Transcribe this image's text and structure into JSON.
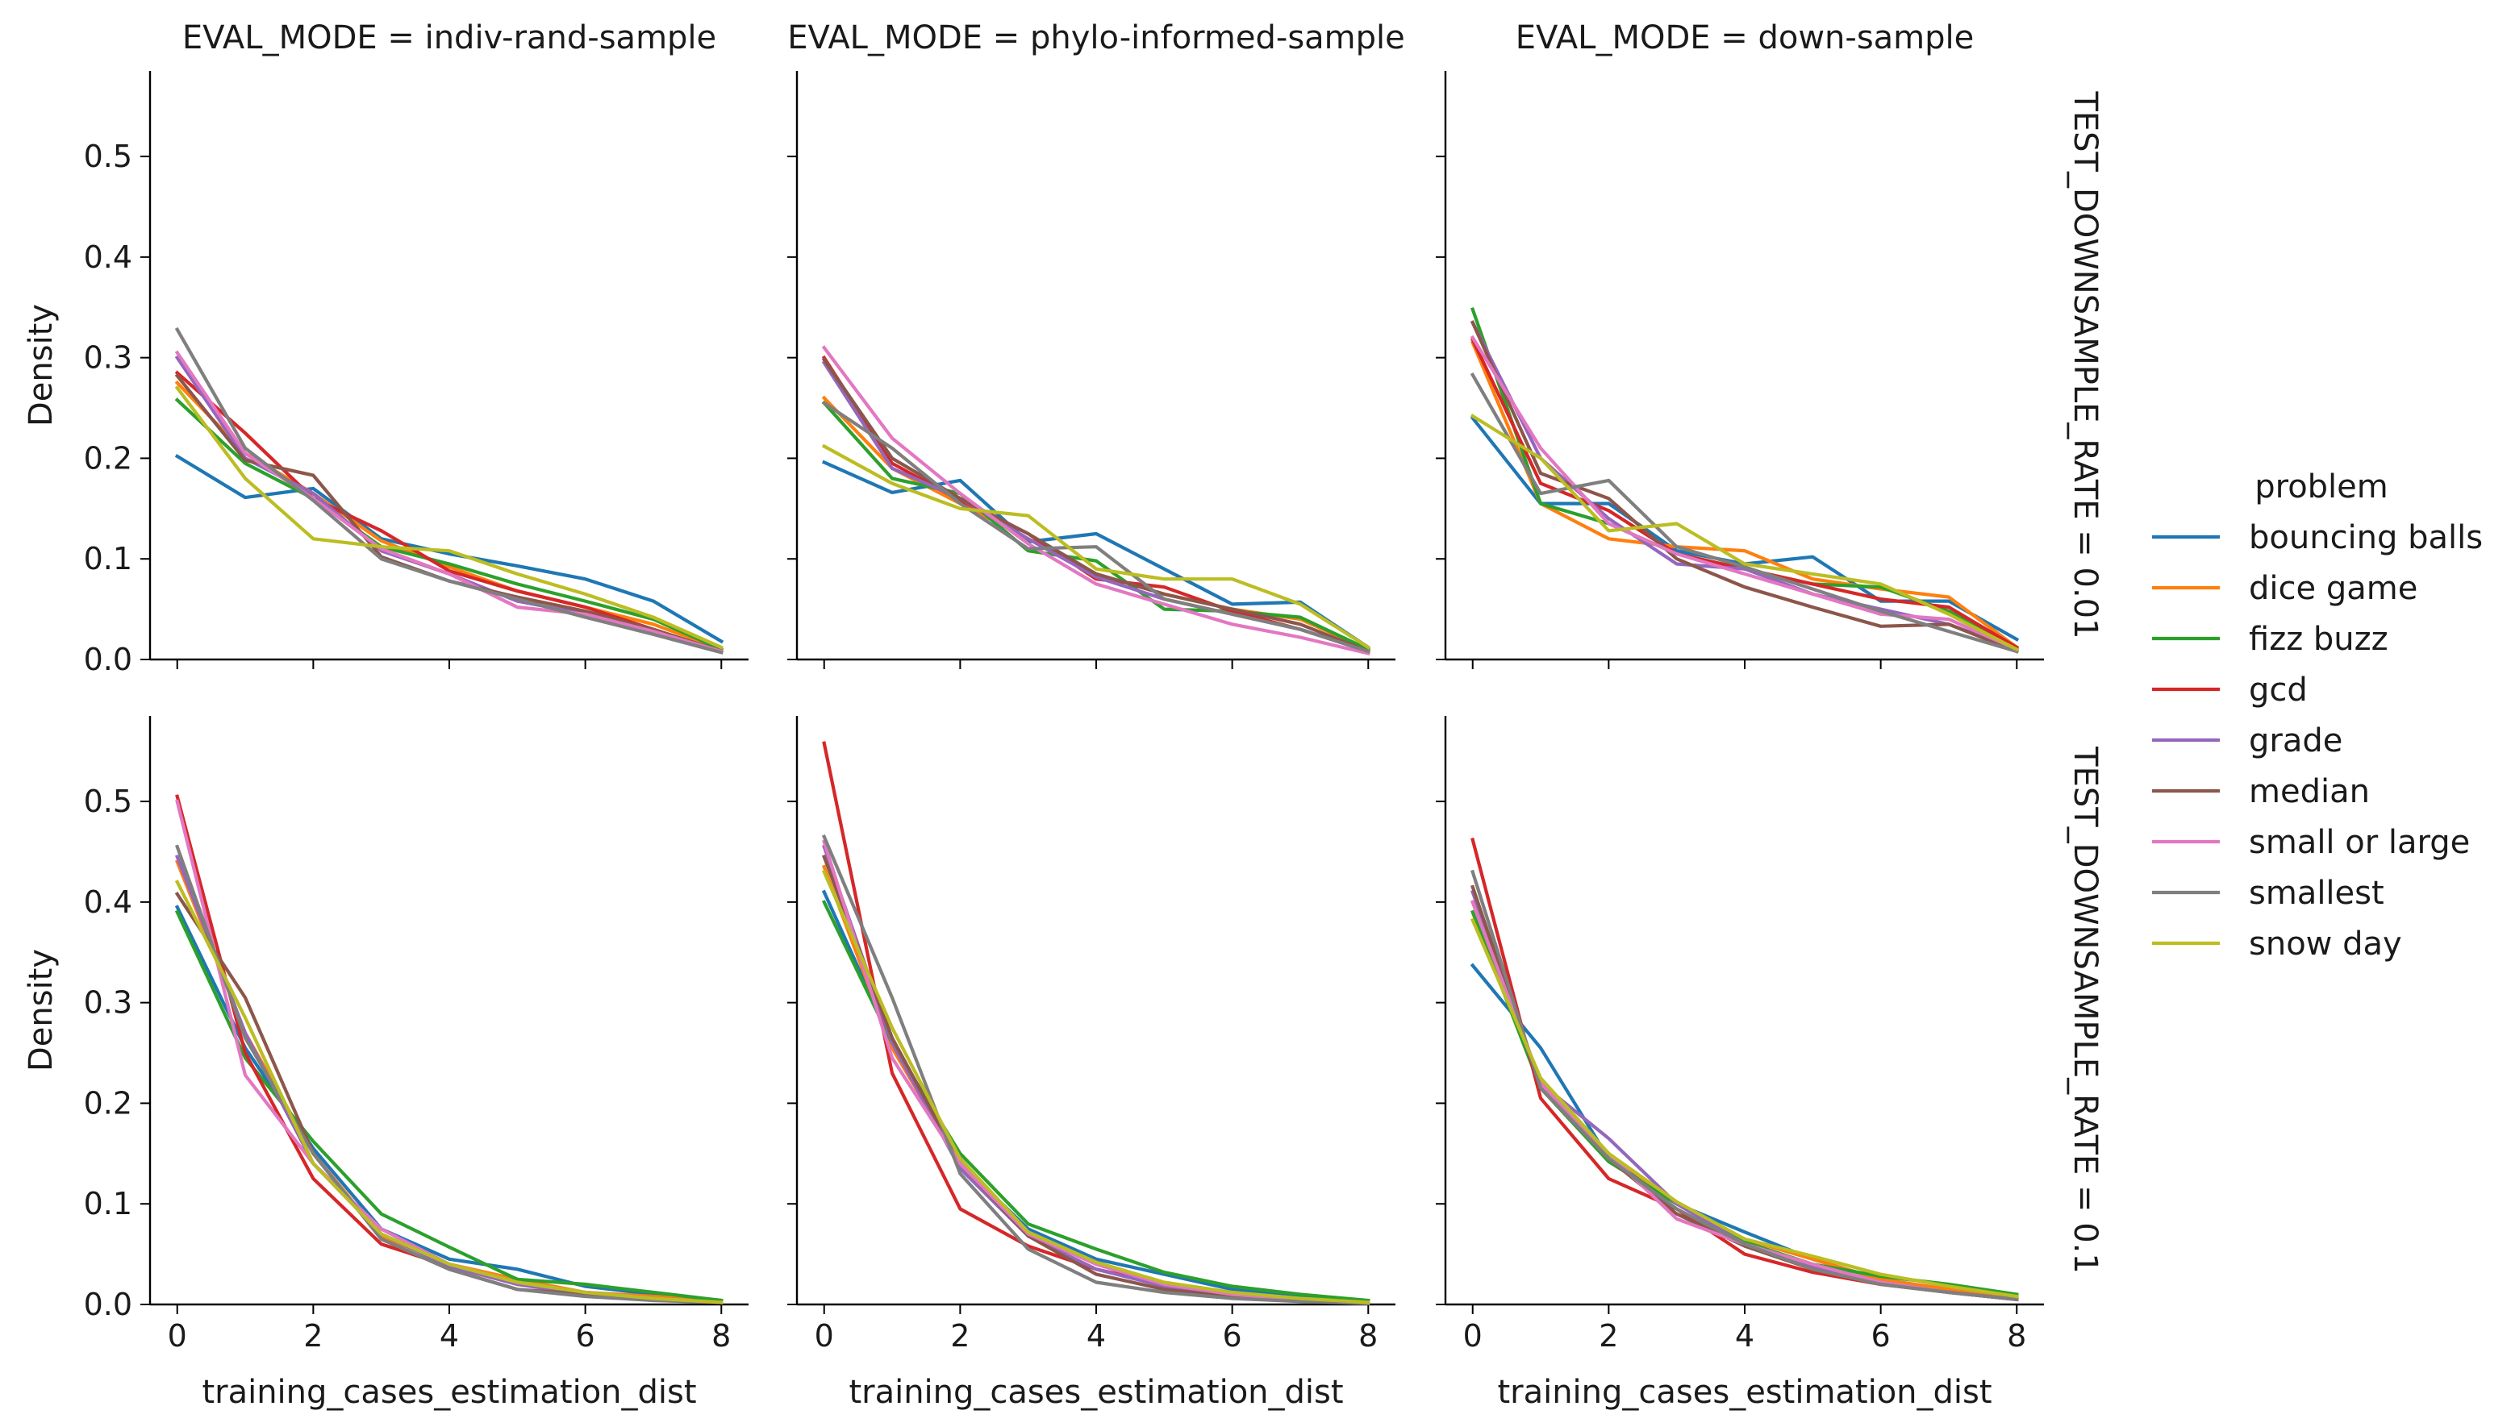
{
  "chart_data": {
    "type": "line",
    "kind": "faceted-grid",
    "col_var": "EVAL_MODE",
    "row_var": "TEST_DOWNSAMPLE_RATE",
    "columns": [
      "EVAL_MODE = indiv-rand-sample",
      "EVAL_MODE = phylo-informed-sample",
      "EVAL_MODE = down-sample"
    ],
    "rows": [
      "TEST_DOWNSAMPLE_RATE = 0.01",
      "TEST_DOWNSAMPLE_RATE = 0.1"
    ],
    "xlabel": "training_cases_estimation_dist",
    "ylabel": "Density",
    "xlim": [
      -0.4,
      8.4
    ],
    "ylim": [
      0,
      0.585
    ],
    "xticks": [
      0,
      2,
      4,
      6,
      8
    ],
    "yticks": [
      0.0,
      0.1,
      0.2,
      0.3,
      0.4,
      0.5
    ],
    "x": [
      0,
      1,
      2,
      3,
      4,
      5,
      6,
      7,
      8
    ],
    "grid": false,
    "legend": {
      "title": "problem",
      "placement": "right",
      "entries": [
        "bouncing balls",
        "dice game",
        "fizz buzz",
        "gcd",
        "grade",
        "median",
        "small or large",
        "smallest",
        "snow day"
      ]
    },
    "colors": {
      "bouncing balls": "#1f77b4",
      "dice game": "#ff7f0e",
      "fizz buzz": "#2ca02c",
      "gcd": "#d62728",
      "grade": "#9467bd",
      "median": "#8c564b",
      "small or large": "#e377c2",
      "smallest": "#7f7f7f",
      "snow day": "#bcbd22"
    },
    "panels": [
      {
        "row": 0,
        "col": 0,
        "series": [
          {
            "name": "bouncing balls",
            "values": [
              0.202,
              0.161,
              0.17,
              0.12,
              0.105,
              0.093,
              0.08,
              0.058,
              0.018
            ]
          },
          {
            "name": "dice game",
            "values": [
              0.275,
              0.205,
              0.165,
              0.118,
              0.092,
              0.068,
              0.052,
              0.035,
              0.01
            ]
          },
          {
            "name": "fizz buzz",
            "values": [
              0.258,
              0.195,
              0.16,
              0.112,
              0.095,
              0.075,
              0.058,
              0.04,
              0.01
            ]
          },
          {
            "name": "gcd",
            "values": [
              0.285,
              0.225,
              0.16,
              0.128,
              0.088,
              0.068,
              0.052,
              0.03,
              0.008
            ]
          },
          {
            "name": "grade",
            "values": [
              0.3,
              0.2,
              0.165,
              0.108,
              0.085,
              0.058,
              0.045,
              0.028,
              0.008
            ]
          },
          {
            "name": "median",
            "values": [
              0.282,
              0.198,
              0.183,
              0.102,
              0.078,
              0.062,
              0.048,
              0.03,
              0.008
            ]
          },
          {
            "name": "small or large",
            "values": [
              0.305,
              0.205,
              0.16,
              0.11,
              0.085,
              0.052,
              0.045,
              0.028,
              0.008
            ]
          },
          {
            "name": "smallest",
            "values": [
              0.328,
              0.21,
              0.158,
              0.1,
              0.078,
              0.06,
              0.042,
              0.025,
              0.007
            ]
          },
          {
            "name": "snow day",
            "values": [
              0.27,
              0.18,
              0.12,
              0.112,
              0.108,
              0.085,
              0.065,
              0.042,
              0.012
            ]
          }
        ]
      },
      {
        "row": 0,
        "col": 1,
        "series": [
          {
            "name": "bouncing balls",
            "values": [
              0.196,
              0.166,
              0.178,
              0.117,
              0.125,
              0.09,
              0.055,
              0.057,
              0.012
            ]
          },
          {
            "name": "dice game",
            "values": [
              0.26,
              0.19,
              0.155,
              0.12,
              0.085,
              0.065,
              0.05,
              0.04,
              0.01
            ]
          },
          {
            "name": "fizz buzz",
            "values": [
              0.255,
              0.18,
              0.165,
              0.108,
              0.098,
              0.05,
              0.048,
              0.042,
              0.01
            ]
          },
          {
            "name": "gcd",
            "values": [
              0.3,
              0.195,
              0.158,
              0.125,
              0.08,
              0.072,
              0.048,
              0.03,
              0.008
            ]
          },
          {
            "name": "grade",
            "values": [
              0.295,
              0.19,
              0.16,
              0.12,
              0.082,
              0.06,
              0.045,
              0.03,
              0.008
            ]
          },
          {
            "name": "median",
            "values": [
              0.298,
              0.2,
              0.16,
              0.125,
              0.085,
              0.065,
              0.05,
              0.035,
              0.008
            ]
          },
          {
            "name": "small or large",
            "values": [
              0.31,
              0.22,
              0.165,
              0.115,
              0.075,
              0.055,
              0.035,
              0.022,
              0.006
            ]
          },
          {
            "name": "smallest",
            "values": [
              0.255,
              0.21,
              0.155,
              0.11,
              0.112,
              0.06,
              0.045,
              0.03,
              0.008
            ]
          },
          {
            "name": "snow day",
            "values": [
              0.212,
              0.175,
              0.15,
              0.143,
              0.09,
              0.08,
              0.08,
              0.055,
              0.012
            ]
          }
        ]
      },
      {
        "row": 0,
        "col": 2,
        "series": [
          {
            "name": "bouncing balls",
            "values": [
              0.24,
              0.155,
              0.155,
              0.108,
              0.095,
              0.102,
              0.058,
              0.058,
              0.02
            ]
          },
          {
            "name": "dice game",
            "values": [
              0.315,
              0.155,
              0.12,
              0.112,
              0.108,
              0.08,
              0.07,
              0.062,
              0.012
            ]
          },
          {
            "name": "fizz buzz",
            "values": [
              0.348,
              0.155,
              0.135,
              0.105,
              0.09,
              0.075,
              0.072,
              0.048,
              0.012
            ]
          },
          {
            "name": "gcd",
            "values": [
              0.318,
              0.175,
              0.148,
              0.105,
              0.09,
              0.075,
              0.06,
              0.052,
              0.012
            ]
          },
          {
            "name": "grade",
            "values": [
              0.335,
              0.2,
              0.14,
              0.095,
              0.09,
              0.065,
              0.05,
              0.035,
              0.01
            ]
          },
          {
            "name": "median",
            "values": [
              0.335,
              0.185,
              0.16,
              0.1,
              0.072,
              0.052,
              0.033,
              0.035,
              0.008
            ]
          },
          {
            "name": "small or large",
            "values": [
              0.32,
              0.21,
              0.135,
              0.105,
              0.085,
              0.065,
              0.045,
              0.04,
              0.01
            ]
          },
          {
            "name": "smallest",
            "values": [
              0.283,
              0.165,
              0.178,
              0.112,
              0.092,
              0.07,
              0.048,
              0.028,
              0.008
            ]
          },
          {
            "name": "snow day",
            "values": [
              0.242,
              0.2,
              0.128,
              0.135,
              0.095,
              0.085,
              0.075,
              0.045,
              0.01
            ]
          }
        ]
      },
      {
        "row": 1,
        "col": 0,
        "series": [
          {
            "name": "bouncing balls",
            "values": [
              0.395,
              0.255,
              0.155,
              0.075,
              0.045,
              0.035,
              0.018,
              0.01,
              0.004
            ]
          },
          {
            "name": "dice game",
            "values": [
              0.44,
              0.27,
              0.15,
              0.068,
              0.04,
              0.025,
              0.012,
              0.008,
              0.003
            ]
          },
          {
            "name": "fizz buzz",
            "values": [
              0.39,
              0.245,
              0.162,
              0.09,
              0.057,
              0.025,
              0.02,
              0.012,
              0.004
            ]
          },
          {
            "name": "gcd",
            "values": [
              0.505,
              0.25,
              0.125,
              0.06,
              0.038,
              0.02,
              0.012,
              0.006,
              0.002
            ]
          },
          {
            "name": "grade",
            "values": [
              0.445,
              0.27,
              0.14,
              0.07,
              0.038,
              0.02,
              0.01,
              0.006,
              0.002
            ]
          },
          {
            "name": "median",
            "values": [
              0.408,
              0.305,
              0.15,
              0.065,
              0.035,
              0.015,
              0.01,
              0.006,
              0.002
            ]
          },
          {
            "name": "small or large",
            "values": [
              0.5,
              0.228,
              0.14,
              0.075,
              0.04,
              0.022,
              0.012,
              0.006,
              0.002
            ]
          },
          {
            "name": "smallest",
            "values": [
              0.455,
              0.265,
              0.15,
              0.065,
              0.035,
              0.015,
              0.008,
              0.004,
              0.002
            ]
          },
          {
            "name": "snow day",
            "values": [
              0.42,
              0.285,
              0.14,
              0.07,
              0.04,
              0.022,
              0.012,
              0.006,
              0.002
            ]
          }
        ]
      },
      {
        "row": 1,
        "col": 1,
        "series": [
          {
            "name": "bouncing balls",
            "values": [
              0.41,
              0.26,
              0.14,
              0.075,
              0.045,
              0.03,
              0.015,
              0.008,
              0.003
            ]
          },
          {
            "name": "dice game",
            "values": [
              0.435,
              0.255,
              0.14,
              0.07,
              0.04,
              0.02,
              0.01,
              0.005,
              0.002
            ]
          },
          {
            "name": "fizz buzz",
            "values": [
              0.4,
              0.26,
              0.15,
              0.08,
              0.055,
              0.032,
              0.018,
              0.01,
              0.004
            ]
          },
          {
            "name": "gcd",
            "values": [
              0.558,
              0.23,
              0.095,
              0.058,
              0.035,
              0.02,
              0.01,
              0.005,
              0.002
            ]
          },
          {
            "name": "grade",
            "values": [
              0.455,
              0.26,
              0.135,
              0.068,
              0.035,
              0.018,
              0.01,
              0.004,
              0.002
            ]
          },
          {
            "name": "median",
            "values": [
              0.445,
              0.265,
              0.14,
              0.068,
              0.03,
              0.015,
              0.008,
              0.004,
              0.002
            ]
          },
          {
            "name": "small or large",
            "values": [
              0.46,
              0.245,
              0.14,
              0.07,
              0.04,
              0.02,
              0.01,
              0.005,
              0.002
            ]
          },
          {
            "name": "smallest",
            "values": [
              0.465,
              0.305,
              0.13,
              0.055,
              0.022,
              0.012,
              0.006,
              0.003,
              0.001
            ]
          },
          {
            "name": "snow day",
            "values": [
              0.43,
              0.275,
              0.145,
              0.072,
              0.042,
              0.022,
              0.012,
              0.006,
              0.002
            ]
          }
        ]
      },
      {
        "row": 1,
        "col": 2,
        "series": [
          {
            "name": "bouncing balls",
            "values": [
              0.337,
              0.255,
              0.145,
              0.1,
              0.072,
              0.045,
              0.025,
              0.015,
              0.008
            ]
          },
          {
            "name": "dice game",
            "values": [
              0.4,
              0.218,
              0.15,
              0.1,
              0.065,
              0.045,
              0.025,
              0.015,
              0.006
            ]
          },
          {
            "name": "fizz buzz",
            "values": [
              0.39,
              0.215,
              0.142,
              0.1,
              0.062,
              0.04,
              0.028,
              0.02,
              0.01
            ]
          },
          {
            "name": "gcd",
            "values": [
              0.462,
              0.205,
              0.125,
              0.095,
              0.05,
              0.032,
              0.02,
              0.012,
              0.005
            ]
          },
          {
            "name": "grade",
            "values": [
              0.41,
              0.22,
              0.165,
              0.1,
              0.06,
              0.038,
              0.022,
              0.012,
              0.005
            ]
          },
          {
            "name": "median",
            "values": [
              0.415,
              0.215,
              0.145,
              0.09,
              0.058,
              0.035,
              0.02,
              0.012,
              0.005
            ]
          },
          {
            "name": "small or large",
            "values": [
              0.4,
              0.22,
              0.15,
              0.085,
              0.06,
              0.04,
              0.022,
              0.012,
              0.005
            ]
          },
          {
            "name": "smallest",
            "values": [
              0.43,
              0.215,
              0.145,
              0.095,
              0.06,
              0.035,
              0.02,
              0.012,
              0.005
            ]
          },
          {
            "name": "snow day",
            "values": [
              0.382,
              0.225,
              0.15,
              0.102,
              0.065,
              0.048,
              0.03,
              0.018,
              0.008
            ]
          }
        ]
      }
    ]
  }
}
